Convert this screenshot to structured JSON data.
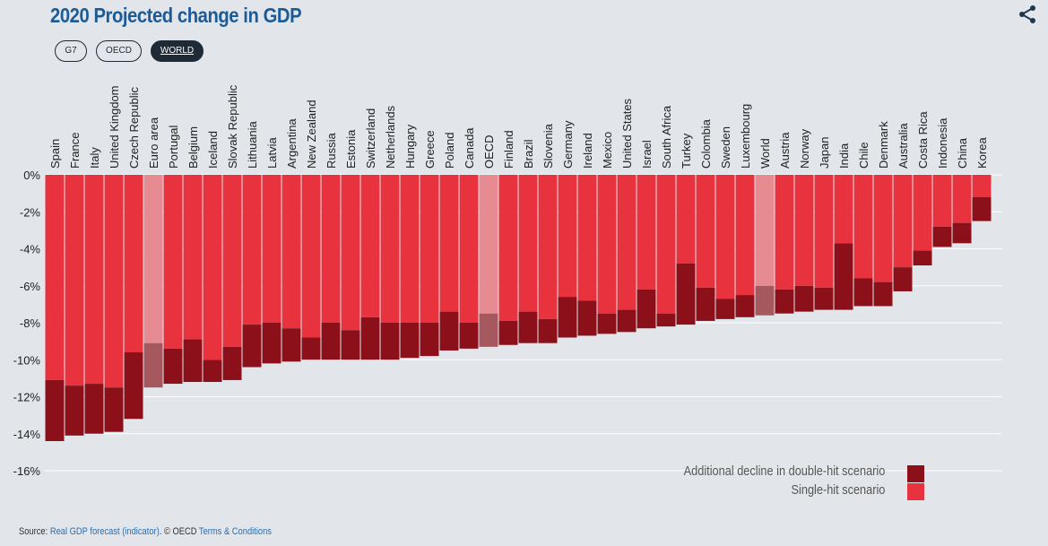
{
  "header": {
    "title": "2020 Projected change in GDP"
  },
  "filters": [
    {
      "label": "G7",
      "active": false
    },
    {
      "label": "OECD",
      "active": false
    },
    {
      "label": "WORLD",
      "active": true
    }
  ],
  "icons": {
    "share": "share-icon"
  },
  "colors": {
    "single_hit": "#e8333f",
    "double_hit": "#8b1019",
    "highlight_single": "#e68b91",
    "highlight_double": "#a5585d",
    "background": "#e2e5ea",
    "title": "#1d5b96"
  },
  "legend": {
    "items": [
      {
        "label": "Additional decline in double-hit scenario",
        "color": "#8b1019"
      },
      {
        "label": "Single-hit scenario",
        "color": "#e8333f"
      }
    ]
  },
  "source": {
    "prefix": "Source: ",
    "link1": "Real GDP forecast (indicator)",
    "middle": ". © OECD ",
    "link2": "Terms & Conditions"
  },
  "chart_data": {
    "type": "bar",
    "title": "2020 Projected change in GDP",
    "xlabel": "",
    "ylabel": "",
    "ylim": [
      -16,
      0
    ],
    "yticks": [
      0,
      -2,
      -4,
      -6,
      -8,
      -10,
      -12,
      -14,
      -16
    ],
    "ytick_labels": [
      "0%",
      "-2%",
      "-4%",
      "-6%",
      "-8%",
      "-10%",
      "-12%",
      "-14%",
      "-16%"
    ],
    "grid": true,
    "legend_position": "bottom-right",
    "categories": [
      "Spain",
      "France",
      "Italy",
      "United Kingdom",
      "Czech Republic",
      "Euro area",
      "Portugal",
      "Belgium",
      "Iceland",
      "Slovak Republic",
      "Lithuania",
      "Latvia",
      "Argentina",
      "New Zealand",
      "Russia",
      "Estonia",
      "Switzerland",
      "Netherlands",
      "Hungary",
      "Greece",
      "Poland",
      "Canada",
      "OECD",
      "Finland",
      "Brazil",
      "Slovenia",
      "Germany",
      "Ireland",
      "Mexico",
      "United States",
      "Israel",
      "South Africa",
      "Turkey",
      "Colombia",
      "Sweden",
      "Luxembourg",
      "World",
      "Austria",
      "Norway",
      "Japan",
      "India",
      "Chile",
      "Denmark",
      "Australia",
      "Costa Rica",
      "Indonesia",
      "China",
      "Korea"
    ],
    "highlighted": [
      "Euro area",
      "OECD",
      "World"
    ],
    "series": [
      {
        "name": "Single-hit scenario",
        "values": [
          -11.1,
          -11.4,
          -11.3,
          -11.5,
          -9.6,
          -9.1,
          -9.4,
          -8.9,
          -10.0,
          -9.3,
          -8.1,
          -8.0,
          -8.3,
          -8.8,
          -8.0,
          -8.4,
          -7.7,
          -8.0,
          -8.0,
          -8.0,
          -7.4,
          -8.0,
          -7.5,
          -7.9,
          -7.4,
          -7.8,
          -6.6,
          -6.8,
          -7.5,
          -7.3,
          -6.2,
          -7.5,
          -4.8,
          -6.1,
          -6.7,
          -6.5,
          -6.0,
          -6.2,
          -6.0,
          -6.1,
          -3.7,
          -5.6,
          -5.8,
          -5.0,
          -4.1,
          -2.8,
          -2.6,
          -1.2
        ]
      },
      {
        "name": "Double-hit scenario",
        "values": [
          -14.4,
          -14.1,
          -14.0,
          -13.9,
          -13.2,
          -11.5,
          -11.3,
          -11.2,
          -11.2,
          -11.1,
          -10.4,
          -10.2,
          -10.1,
          -10.0,
          -10.0,
          -10.0,
          -10.0,
          -10.0,
          -9.9,
          -9.8,
          -9.5,
          -9.4,
          -9.3,
          -9.2,
          -9.1,
          -9.1,
          -8.8,
          -8.7,
          -8.6,
          -8.5,
          -8.3,
          -8.2,
          -8.1,
          -7.9,
          -7.8,
          -7.7,
          -7.6,
          -7.5,
          -7.4,
          -7.3,
          -7.3,
          -7.1,
          -7.1,
          -6.3,
          -4.9,
          -3.9,
          -3.7,
          -2.5
        ]
      }
    ]
  }
}
